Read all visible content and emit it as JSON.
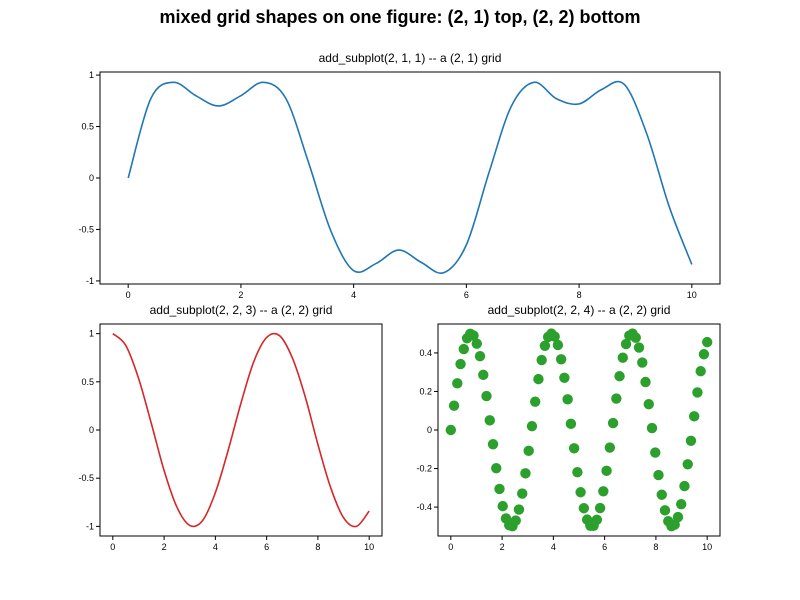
{
  "figure": {
    "title": "mixed grid shapes on one figure: (2, 1) top, (2, 2) bottom"
  },
  "chart_data": [
    {
      "type": "line",
      "title": "add_subplot(2, 1, 1) -- a (2, 1) grid",
      "xlabel": "",
      "ylabel": "",
      "function": "sin(x) + 0.5*sin(3x) normalized, sampled 0..10",
      "x": [
        0.0,
        0.4,
        0.8,
        1.2,
        1.6,
        2.0,
        2.4,
        2.8,
        3.2,
        3.6,
        4.0,
        4.4,
        4.8,
        5.2,
        5.6,
        6.0,
        6.4,
        6.8,
        7.2,
        7.6,
        8.0,
        8.4,
        8.8,
        9.2,
        9.6,
        10.0
      ],
      "y": [
        0.0,
        0.77,
        0.93,
        0.8,
        0.7,
        0.8,
        0.93,
        0.77,
        0.15,
        -0.52,
        -0.9,
        -0.83,
        -0.7,
        -0.82,
        -0.92,
        -0.65,
        0.05,
        0.7,
        0.93,
        0.77,
        0.72,
        0.86,
        0.91,
        0.43,
        -0.28,
        -0.84
      ],
      "series": [
        {
          "color": "#1f77b4"
        }
      ],
      "xlim": [
        -0.5,
        10.5
      ],
      "ylim": [
        -1.03,
        1.03
      ],
      "xticks": [
        "0",
        "2",
        "4",
        "6",
        "8",
        "10"
      ],
      "yticks": [
        "-1",
        "-0.5",
        "0",
        "0.5",
        "1"
      ],
      "grid": false
    },
    {
      "type": "line",
      "title": "add_subplot(2, 2, 3) -- a (2, 2) grid",
      "xlabel": "",
      "ylabel": "",
      "function": "cos(x), sampled 0..10",
      "x": [
        0.0,
        0.5,
        1.0,
        1.5,
        2.0,
        2.5,
        3.0,
        3.5,
        4.0,
        4.5,
        5.0,
        5.5,
        6.0,
        6.5,
        7.0,
        7.5,
        8.0,
        8.5,
        9.0,
        9.5,
        10.0
      ],
      "y": [
        1.0,
        0.88,
        0.54,
        0.07,
        -0.42,
        -0.8,
        -0.99,
        -0.94,
        -0.65,
        -0.21,
        0.28,
        0.71,
        0.96,
        0.98,
        0.75,
        0.35,
        -0.15,
        -0.6,
        -0.91,
        -1.0,
        -0.84
      ],
      "series": [
        {
          "color": "#d62728"
        }
      ],
      "xlim": [
        -0.5,
        10.5
      ],
      "ylim": [
        -1.1,
        1.1
      ],
      "xticks": [
        "0",
        "2",
        "4",
        "6",
        "8",
        "10"
      ],
      "yticks": [
        "-1",
        "-0.5",
        "0",
        "0.5",
        "1"
      ],
      "grid": false
    },
    {
      "type": "scatter",
      "title": "add_subplot(2, 2, 4) -- a (2, 2) grid",
      "xlabel": "",
      "ylabel": "",
      "function": "0.5*sin(2x), 80 points over 0..10",
      "x": [
        0.0,
        0.127,
        0.253,
        0.38,
        0.506,
        0.633,
        0.759,
        0.886,
        1.013,
        1.139,
        1.266,
        1.392,
        1.519,
        1.646,
        1.772,
        1.899,
        2.025,
        2.152,
        2.278,
        2.405,
        2.532,
        2.658,
        2.785,
        2.911,
        3.038,
        3.165,
        3.291,
        3.418,
        3.544,
        3.671,
        3.797,
        3.924,
        4.051,
        4.177,
        4.304,
        4.43,
        4.557,
        4.684,
        4.81,
        4.937,
        5.063,
        5.19,
        5.316,
        5.443,
        5.57,
        5.696,
        5.823,
        5.949,
        6.076,
        6.203,
        6.329,
        6.456,
        6.582,
        6.709,
        6.835,
        6.962,
        7.089,
        7.215,
        7.342,
        7.468,
        7.595,
        7.722,
        7.848,
        7.975,
        8.101,
        8.228,
        8.354,
        8.481,
        8.608,
        8.734,
        8.861,
        8.987,
        9.114,
        9.241,
        9.367,
        9.494,
        9.62,
        9.747,
        9.873,
        10.0
      ],
      "y": [
        0.0,
        0.126,
        0.242,
        0.342,
        0.42,
        0.476,
        0.499,
        0.49,
        0.448,
        0.383,
        0.286,
        0.176,
        0.05,
        -0.074,
        -0.198,
        -0.306,
        -0.395,
        -0.459,
        -0.494,
        -0.499,
        -0.47,
        -0.413,
        -0.33,
        -0.225,
        -0.108,
        0.02,
        0.147,
        0.264,
        0.363,
        0.437,
        0.483,
        0.5,
        0.485,
        0.441,
        0.367,
        0.271,
        0.159,
        0.032,
        -0.095,
        -0.219,
        -0.323,
        -0.406,
        -0.465,
        -0.497,
        -0.497,
        -0.466,
        -0.405,
        -0.318,
        -0.212,
        -0.091,
        0.036,
        0.163,
        0.279,
        0.375,
        0.446,
        0.49,
        0.5,
        0.479,
        0.428,
        0.35,
        0.249,
        0.134,
        0.01,
        -0.117,
        -0.234,
        -0.336,
        -0.417,
        -0.473,
        -0.499,
        -0.491,
        -0.452,
        -0.385,
        -0.291,
        -0.178,
        -0.056,
        0.071,
        0.195,
        0.305,
        0.393,
        0.456
      ],
      "series": [
        {
          "color": "#2ca02c"
        }
      ],
      "xlim": [
        -0.5,
        10.5
      ],
      "ylim": [
        -0.55,
        0.55
      ],
      "xticks": [
        "0",
        "2",
        "4",
        "6",
        "8",
        "10"
      ],
      "yticks": [
        "-0.4",
        "-0.2",
        "0",
        "0.2",
        "0.4"
      ],
      "grid": false
    }
  ]
}
